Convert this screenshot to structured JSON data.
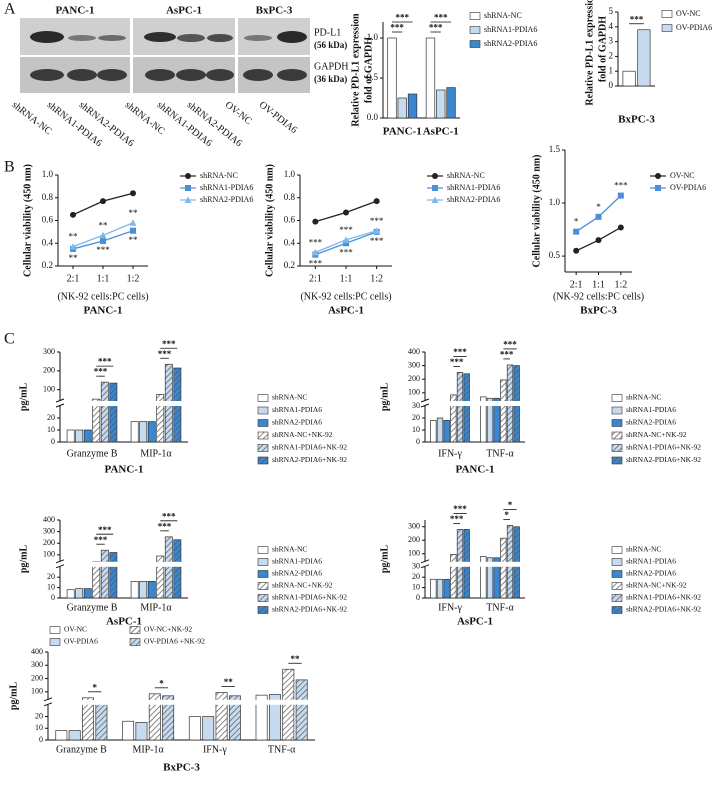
{
  "panel_labels": [
    "A",
    "B",
    "C"
  ],
  "blot": {
    "cell_lines": [
      "PANC-1",
      "AsPC-1",
      "BxPC-3"
    ],
    "proteins": [
      {
        "name": "PD-L1",
        "size": "(56 kDa)"
      },
      {
        "name": "GAPDH",
        "size": "(36 kDa)"
      }
    ],
    "lanes": [
      "shRNA-NC",
      "shRNA1-PDIA6",
      "shRNA2-PDIA6",
      "shRNA-NC",
      "shRNA1-PDIA6",
      "shRNA2-PDIA6",
      "OV-NC",
      "OV-PDIA6"
    ]
  },
  "chart_data": [
    {
      "type": "bar",
      "ylabel": [
        "Relative PD-L1 expression",
        "fold of GAPDH"
      ],
      "categories": [
        "PANC-1",
        "AsPC-1"
      ],
      "series": [
        {
          "name": "shRNA-NC",
          "color": "#ffffff",
          "values": [
            1,
            1
          ]
        },
        {
          "name": "shRNA1-PDIA6",
          "color": "#c6dbef",
          "values": [
            0.25,
            0.35
          ]
        },
        {
          "name": "shRNA2-PDIA6",
          "color": "#3a87d0",
          "values": [
            0.3,
            0.38
          ]
        }
      ],
      "ylim": [
        0,
        1.2
      ],
      "yticks": [
        {
          "value": 0,
          "label": "0.0"
        },
        0.5,
        {
          "value": 1,
          "label": "1.0"
        }
      ],
      "significance": [
        "***",
        "***",
        "***",
        "***"
      ]
    },
    {
      "type": "bar",
      "ylabel": [
        "Relative PD-L1 expression",
        "fold of GAPDH"
      ],
      "categories": [
        "BxPC-3"
      ],
      "series": [
        {
          "name": "OV-NC",
          "color": "#ffffff",
          "values": [
            1
          ]
        },
        {
          "name": "OV-PDIA6",
          "color": "#c6dbef",
          "values": [
            3.8
          ]
        }
      ],
      "ylim": [
        0,
        5
      ],
      "yticks": [
        0,
        1,
        2,
        3,
        4,
        5
      ],
      "significance": [
        "***"
      ]
    },
    {
      "type": "line",
      "ylabel": "Cellular viability (450 nm)",
      "xlabel": "(NK-92 cells:PC cells)",
      "title": "PANC-1",
      "categories": [
        "2:1",
        "1:1",
        "1:2"
      ],
      "series": [
        {
          "name": "shRNA-NC",
          "color": "#222222",
          "marker": "circle",
          "values": [
            0.65,
            0.77,
            0.84
          ]
        },
        {
          "name": "shRNA1-PDIA6",
          "color": "#4a90d9",
          "marker": "square",
          "values": [
            0.35,
            0.42,
            0.51
          ],
          "labels": [
            "**",
            "***",
            "**"
          ]
        },
        {
          "name": "shRNA2-PDIA6",
          "color": "#7fb8ec",
          "marker": "triangle",
          "values": [
            0.37,
            0.47,
            0.58
          ],
          "labels": [
            "**",
            "**",
            "**"
          ]
        }
      ],
      "ylim": [
        0.2,
        1.0
      ],
      "yticks": [
        0.2,
        0.4,
        0.6,
        0.8,
        {
          "value": 1,
          "label": "1.0"
        }
      ]
    },
    {
      "type": "line",
      "ylabel": "Cellular viability (450 nm)",
      "xlabel": "(NK-92 cells:PC cells)",
      "title": "AsPC-1",
      "categories": [
        "2:1",
        "1:1",
        "1:2"
      ],
      "series": [
        {
          "name": "shRNA-NC",
          "color": "#222222",
          "marker": "circle",
          "values": [
            0.59,
            0.67,
            0.77
          ]
        },
        {
          "name": "shRNA1-PDIA6",
          "color": "#4a90d9",
          "marker": "square",
          "values": [
            0.3,
            0.4,
            0.5
          ],
          "labels": [
            "***",
            "***",
            "***"
          ]
        },
        {
          "name": "shRNA2-PDIA6",
          "color": "#7fb8ec",
          "marker": "triangle",
          "values": [
            0.32,
            0.43,
            0.51
          ],
          "labels": [
            "***",
            "***",
            "***"
          ]
        }
      ],
      "ylim": [
        0.2,
        1.0
      ],
      "yticks": [
        0.2,
        0.4,
        0.6,
        0.8,
        {
          "value": 1,
          "label": "1.0"
        }
      ]
    },
    {
      "type": "line",
      "ylabel": "Cellular viability (450 nm)",
      "xlabel": "(NK-92 cells:PC cells)",
      "title": "BxPC-3",
      "categories": [
        "2:1",
        "1:1",
        "1:2"
      ],
      "series": [
        {
          "name": "OV-NC",
          "color": "#222222",
          "marker": "circle",
          "values": [
            0.55,
            0.65,
            0.77
          ]
        },
        {
          "name": "OV-PDIA6",
          "color": "#4a90d9",
          "marker": "square",
          "values": [
            0.73,
            0.87,
            1.07
          ],
          "labels": [
            "*",
            "*",
            "***"
          ]
        }
      ],
      "ylim": [
        0.35,
        1.5
      ],
      "yticks": [
        0.5,
        {
          "value": 1,
          "label": "1.0"
        },
        1.5
      ]
    },
    {
      "type": "bar",
      "ylabel": "pg/mL",
      "xlabel": "PANC-1",
      "categories": [
        "Granzyme B",
        "MIP-1α"
      ],
      "series": [
        {
          "name": "shRNA-NC",
          "color": "#ffffff",
          "values": [
            10,
            17
          ]
        },
        {
          "name": "shRNA1-PDIA6",
          "color": "#c6dbef",
          "values": [
            10,
            17
          ]
        },
        {
          "name": "shRNA2-PDIA6",
          "color": "#3a87d0",
          "values": [
            10,
            17
          ]
        },
        {
          "name": "shRNA-NC+NK-92",
          "color": "#ffffff",
          "pattern": "hatch",
          "values": [
            50,
            75
          ]
        },
        {
          "name": "shRNA1-PDIA6+NK-92",
          "color": "#c6dbef",
          "pattern": "hatch",
          "values": [
            140,
            235
          ]
        },
        {
          "name": "shRNA2-PDIA6+NK-92",
          "color": "#3a87d0",
          "pattern": "hatch",
          "values": [
            135,
            215
          ]
        }
      ],
      "ylim": [
        0,
        300
      ],
      "ybreak": [
        30,
        40
      ],
      "yticks": [
        0,
        10,
        20,
        100,
        200,
        300
      ],
      "significance": [
        "***",
        "***",
        "***",
        "***"
      ]
    },
    {
      "type": "bar",
      "ylabel": "pg/mL",
      "xlabel": "PANC-1",
      "categories": [
        "IFN-γ",
        "TNF-α"
      ],
      "series": [
        {
          "name": "shRNA-NC",
          "color": "#ffffff",
          "values": [
            18,
            70
          ]
        },
        {
          "name": "shRNA1-PDIA6",
          "color": "#c6dbef",
          "values": [
            20,
            60
          ]
        },
        {
          "name": "shRNA2-PDIA6",
          "color": "#3a87d0",
          "values": [
            18,
            60
          ]
        },
        {
          "name": "shRNA-NC+NK-92",
          "color": "#ffffff",
          "pattern": "hatch",
          "values": [
            85,
            195
          ]
        },
        {
          "name": "shRNA1-PDIA6+NK-92",
          "color": "#c6dbef",
          "pattern": "hatch",
          "values": [
            250,
            305
          ]
        },
        {
          "name": "shRNA2-PDIA6+NK-92",
          "color": "#3a87d0",
          "pattern": "hatch",
          "values": [
            240,
            300
          ]
        }
      ],
      "ylim": [
        0,
        400
      ],
      "ybreak": [
        30,
        40
      ],
      "yticks": [
        0,
        10,
        20,
        30,
        100,
        200,
        300,
        400
      ],
      "significance": [
        "***",
        "***",
        "***",
        "***"
      ]
    },
    {
      "type": "bar",
      "ylabel": "pg/mL",
      "xlabel": "AsPC-1",
      "categories": [
        "Granzyme B",
        "MIP-1α"
      ],
      "series": [
        {
          "name": "shRNA-NC",
          "color": "#ffffff",
          "values": [
            8,
            16
          ]
        },
        {
          "name": "shRNA1-PDIA6",
          "color": "#c6dbef",
          "values": [
            9,
            16
          ]
        },
        {
          "name": "shRNA2-PDIA6",
          "color": "#3a87d0",
          "values": [
            9,
            16
          ]
        },
        {
          "name": "shRNA-NC+NK-92",
          "color": "#ffffff",
          "pattern": "hatch",
          "values": [
            40,
            90
          ]
        },
        {
          "name": "shRNA1-PDIA6+NK-92",
          "color": "#c6dbef",
          "pattern": "hatch",
          "values": [
            140,
            255
          ]
        },
        {
          "name": "shRNA2-PDIA6+NK-92",
          "color": "#3a87d0",
          "pattern": "hatch",
          "values": [
            120,
            230
          ]
        }
      ],
      "ylim": [
        0,
        400
      ],
      "ybreak": [
        30,
        40
      ],
      "yticks": [
        0,
        10,
        20,
        100,
        200,
        300,
        400
      ],
      "significance": [
        "***",
        "***",
        "***",
        "***"
      ]
    },
    {
      "type": "bar",
      "ylabel": "pg/mL",
      "xlabel": "AsPC-1",
      "categories": [
        "IFN-γ",
        "TNF-α"
      ],
      "series": [
        {
          "name": "shRNA-NC",
          "color": "#ffffff",
          "values": [
            18,
            80
          ]
        },
        {
          "name": "shRNA1-PDIA6",
          "color": "#c6dbef",
          "values": [
            18,
            70
          ]
        },
        {
          "name": "shRNA2-PDIA6",
          "color": "#3a87d0",
          "values": [
            18,
            70
          ]
        },
        {
          "name": "shRNA-NC+NK-92",
          "color": "#ffffff",
          "pattern": "hatch",
          "values": [
            95,
            215
          ]
        },
        {
          "name": "shRNA1-PDIA6+NK-92",
          "color": "#c6dbef",
          "pattern": "hatch",
          "values": [
            280,
            310
          ]
        },
        {
          "name": "shRNA2-PDIA6+NK-92",
          "color": "#3a87d0",
          "pattern": "hatch",
          "values": [
            280,
            300
          ]
        }
      ],
      "ylim": [
        0,
        350
      ],
      "ybreak": [
        30,
        40
      ],
      "yticks": [
        0,
        10,
        20,
        30,
        100,
        200,
        300
      ],
      "significance": [
        "***",
        "***",
        "*",
        "*"
      ]
    },
    {
      "type": "bar",
      "ylabel": "pg/mL",
      "xlabel": "BxPC-3",
      "categories": [
        "Granzyme B",
        "MIP-1α",
        "IFN-γ",
        "TNF-α"
      ],
      "series": [
        {
          "name": "OV-NC",
          "color": "#ffffff",
          "values": [
            8,
            16,
            20,
            75
          ]
        },
        {
          "name": "OV-PDIA6",
          "color": "#c6dbef",
          "values": [
            8,
            15,
            20,
            80
          ]
        },
        {
          "name": "OV-NC+NK-92",
          "color": "#ffffff",
          "pattern": "hatch",
          "values": [
            55,
            85,
            95,
            270
          ]
        },
        {
          "name": "OV-PDIA6 +NK-92",
          "color": "#c6dbef",
          "pattern": "hatch",
          "values": [
            35,
            70,
            70,
            190
          ]
        }
      ],
      "ylim": [
        0,
        400
      ],
      "ybreak": [
        30,
        40
      ],
      "yticks": [
        0,
        10,
        20,
        100,
        200,
        300,
        400
      ],
      "significance": [
        "*",
        "*",
        "**",
        "**"
      ]
    }
  ]
}
